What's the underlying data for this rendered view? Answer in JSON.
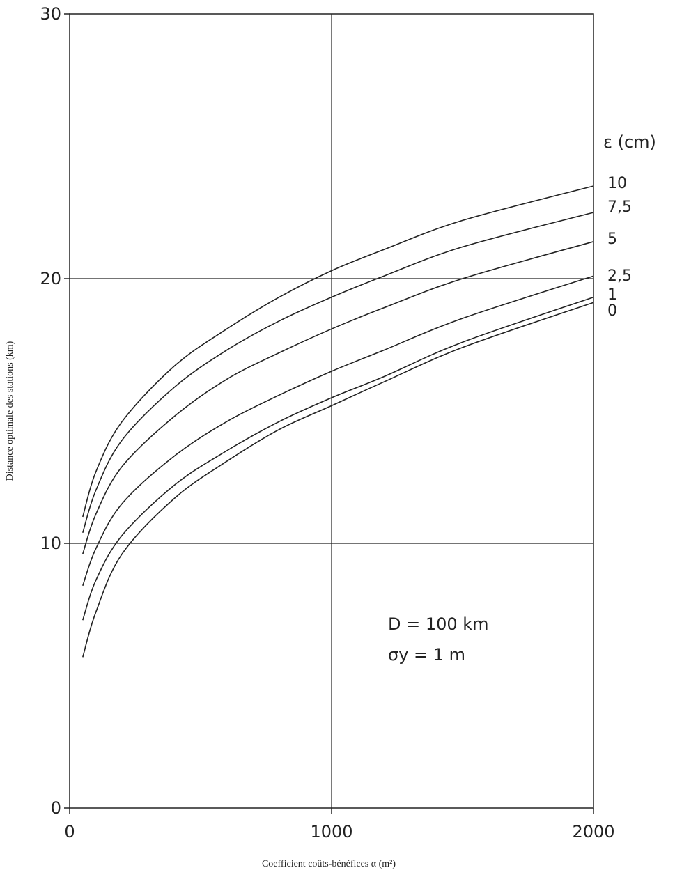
{
  "chart_data": {
    "type": "line",
    "xlabel": "Coefficient coûts-bénéfices α (m²)",
    "ylabel": "Distance optimale des stations (km)",
    "xlim": [
      0,
      2000
    ],
    "ylim": [
      0,
      30
    ],
    "x_ticks": [
      "0",
      "1000",
      "2000"
    ],
    "y_ticks": [
      "0",
      "10",
      "20",
      "30"
    ],
    "x_tick_values": [
      0,
      1000,
      2000
    ],
    "y_tick_values": [
      0,
      10,
      20,
      30
    ],
    "grid": true,
    "legend_title": "ε (cm)",
    "annotations": [
      "D = 100 km",
      "σy = 1 m"
    ],
    "series": [
      {
        "name": "10",
        "x": [
          50,
          100,
          200,
          400,
          600,
          800,
          1000,
          1200,
          1500,
          2000
        ],
        "y": [
          11.0,
          12.7,
          14.6,
          16.7,
          18.1,
          19.3,
          20.3,
          21.1,
          22.2,
          23.5
        ]
      },
      {
        "name": "7,5",
        "x": [
          50,
          100,
          200,
          400,
          600,
          800,
          1000,
          1200,
          1500,
          2000
        ],
        "y": [
          10.4,
          12.0,
          13.9,
          15.9,
          17.3,
          18.4,
          19.3,
          20.1,
          21.2,
          22.5
        ]
      },
      {
        "name": "5",
        "x": [
          50,
          100,
          200,
          400,
          600,
          800,
          1000,
          1200,
          1500,
          2000
        ],
        "y": [
          9.6,
          11.1,
          12.9,
          14.8,
          16.2,
          17.2,
          18.1,
          18.9,
          20.0,
          21.4
        ]
      },
      {
        "name": "2,5",
        "x": [
          50,
          100,
          200,
          400,
          600,
          800,
          1000,
          1200,
          1500,
          2000
        ],
        "y": [
          8.4,
          9.8,
          11.5,
          13.3,
          14.6,
          15.6,
          16.5,
          17.3,
          18.5,
          20.1
        ]
      },
      {
        "name": "1",
        "x": [
          50,
          100,
          200,
          400,
          600,
          800,
          1000,
          1200,
          1500,
          2000
        ],
        "y": [
          7.1,
          8.6,
          10.3,
          12.2,
          13.5,
          14.6,
          15.5,
          16.3,
          17.6,
          19.3
        ]
      },
      {
        "name": "0",
        "x": [
          50,
          100,
          200,
          400,
          600,
          800,
          1000,
          1200,
          1500,
          2000
        ],
        "y": [
          5.7,
          7.4,
          9.6,
          11.7,
          13.1,
          14.3,
          15.2,
          16.1,
          17.4,
          19.1
        ]
      }
    ]
  }
}
